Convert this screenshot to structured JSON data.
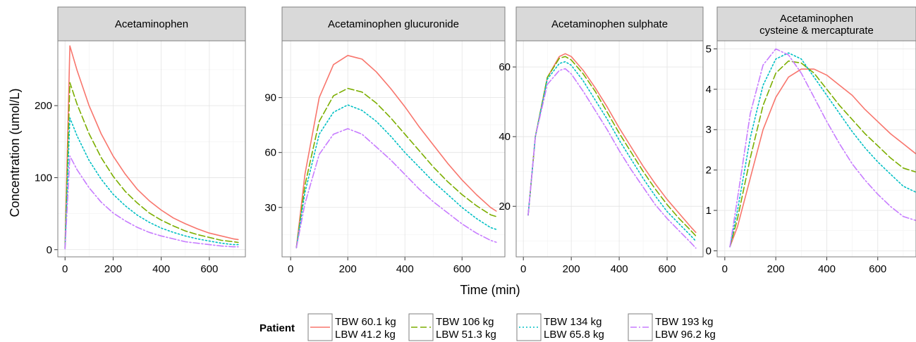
{
  "chart_data": {
    "type": "line",
    "xlabel": "Time (min)",
    "ylabel": "Concentration (umol/L)",
    "legend": {
      "title": "Patient",
      "position": "bottom",
      "entries": [
        {
          "line1": "TBW 60.1 kg",
          "line2": "LBW 41.2 kg",
          "color": "#F8766D",
          "dash": "solid"
        },
        {
          "line1": "TBW 106 kg",
          "line2": "LBW 51.3 kg",
          "color": "#7CAE00",
          "dash": "dashed"
        },
        {
          "line1": "TBW 134 kg",
          "line2": "LBW 65.8 kg",
          "color": "#00BFC4",
          "dash": "dotted"
        },
        {
          "line1": "TBW 193 kg",
          "line2": "LBW 96.2 kg",
          "color": "#C77CFF",
          "dash": "dotdash"
        }
      ]
    },
    "panels": [
      {
        "title_lines": [
          "Acetaminophen"
        ],
        "xlim": [
          -30,
          750
        ],
        "ylim": [
          -10,
          290
        ],
        "xticks": [
          0,
          200,
          400,
          600
        ],
        "yticks": [
          0,
          100,
          200
        ],
        "x": [
          0,
          20,
          50,
          100,
          150,
          200,
          250,
          300,
          350,
          400,
          450,
          500,
          550,
          600,
          650,
          700,
          720
        ],
        "series": [
          {
            "values": [
              3,
              283,
              249,
              200,
              161,
              130,
              105,
              84,
              68,
              55,
              44,
              36,
              29,
              23,
              19,
              15,
              14
            ]
          },
          {
            "values": [
              2,
              232,
              202,
              161,
              128,
              102,
              81,
              65,
              51,
              41,
              33,
              26,
              21,
              17,
              13,
              11,
              10
            ]
          },
          {
            "values": [
              2,
              183,
              158,
              124,
              98,
              77,
              61,
              48,
              38,
              30,
              24,
              19,
              15,
              12,
              9,
              7,
              7
            ]
          },
          {
            "values": [
              1,
              130,
              111,
              86,
              66,
              51,
              40,
              31,
              24,
              19,
              15,
              11,
              9,
              7,
              5,
              4,
              4
            ]
          }
        ]
      },
      {
        "title_lines": [
          "Acetaminophen glucuronide"
        ],
        "xlim": [
          -30,
          750
        ],
        "ylim": [
          3,
          121
        ],
        "xticks": [
          0,
          200,
          400,
          600
        ],
        "yticks": [
          30,
          60,
          90
        ],
        "x": [
          20,
          50,
          100,
          150,
          200,
          250,
          300,
          350,
          400,
          450,
          500,
          550,
          600,
          650,
          700,
          720
        ],
        "series": [
          {
            "values": [
              8,
              48,
              90,
              108,
              113,
              111,
              104,
              95,
              85,
              74,
              64,
              54,
              45,
              37,
              30,
              28
            ]
          },
          {
            "values": [
              8,
              42,
              77,
              91,
              95,
              93,
              87,
              79,
              70,
              61,
              52,
              44,
              37,
              31,
              26,
              25
            ]
          },
          {
            "values": [
              8,
              38,
              70,
              82,
              86,
              83,
              77,
              69,
              60,
              52,
              44,
              37,
              30,
              24,
              19,
              18
            ]
          },
          {
            "values": [
              8,
              32,
              59,
              70,
              73,
              70,
              63,
              56,
              48,
              40,
              33,
              27,
              21,
              16,
              12,
              11
            ]
          }
        ]
      },
      {
        "title_lines": [
          "Acetaminophen sulphate"
        ],
        "xlim": [
          -30,
          750
        ],
        "ylim": [
          5.5,
          67.5
        ],
        "xticks": [
          0,
          200,
          400,
          600
        ],
        "yticks": [
          20,
          40,
          60
        ],
        "x": [
          20,
          50,
          100,
          150,
          175,
          200,
          250,
          300,
          350,
          400,
          450,
          500,
          550,
          600,
          650,
          700,
          720
        ],
        "series": [
          {
            "values": [
              17.5,
              40,
              57,
              63,
              63.8,
              63,
              59,
              54,
              48.5,
              42.5,
              37,
              31.5,
              26.5,
              22,
              18,
              14,
              12.5
            ]
          },
          {
            "values": [
              17.5,
              40,
              57,
              62.5,
              63,
              62,
              58,
              53,
              47,
              41,
              35.5,
              30,
              25,
              20.5,
              16.5,
              13,
              11.5
            ]
          },
          {
            "values": [
              17.5,
              40,
              56.5,
              61,
              61.5,
              60.5,
              56,
              50.5,
              45,
              39,
              33.5,
              28,
              23,
              18.5,
              15,
              11.5,
              10
            ]
          },
          {
            "values": [
              17.5,
              40,
              55,
              59,
              59.5,
              58,
              53,
              47.5,
              42,
              36,
              30.5,
              25.5,
              20.5,
              16.5,
              13,
              9.5,
              8
            ]
          }
        ]
      },
      {
        "title_lines": [
          "Acetaminophen",
          "cysteine & mercapturate"
        ],
        "xlim": [
          -30,
          750
        ],
        "ylim": [
          -0.15,
          5.2
        ],
        "xticks": [
          0,
          200,
          400,
          600
        ],
        "yticks": [
          0,
          1,
          2,
          3,
          4,
          5
        ],
        "x": [
          20,
          50,
          100,
          150,
          200,
          250,
          300,
          350,
          400,
          450,
          500,
          550,
          600,
          650,
          700,
          750
        ],
        "series": [
          {
            "values": [
              0.1,
              0.6,
              1.8,
              3.0,
              3.8,
              4.3,
              4.5,
              4.5,
              4.35,
              4.1,
              3.85,
              3.5,
              3.2,
              2.9,
              2.65,
              2.4
            ]
          },
          {
            "values": [
              0.1,
              0.8,
              2.3,
              3.6,
              4.4,
              4.7,
              4.65,
              4.4,
              4.0,
              3.6,
              3.25,
              2.9,
              2.6,
              2.3,
              2.05,
              1.95
            ]
          },
          {
            "values": [
              0.1,
              1.0,
              2.8,
              4.1,
              4.75,
              4.9,
              4.75,
              4.3,
              3.85,
              3.4,
              2.95,
              2.55,
              2.2,
              1.9,
              1.6,
              1.45
            ]
          },
          {
            "values": [
              0.1,
              1.3,
              3.4,
              4.6,
              5.0,
              4.85,
              4.4,
              3.8,
              3.2,
              2.65,
              2.15,
              1.75,
              1.4,
              1.1,
              0.85,
              0.75
            ]
          }
        ]
      }
    ]
  }
}
